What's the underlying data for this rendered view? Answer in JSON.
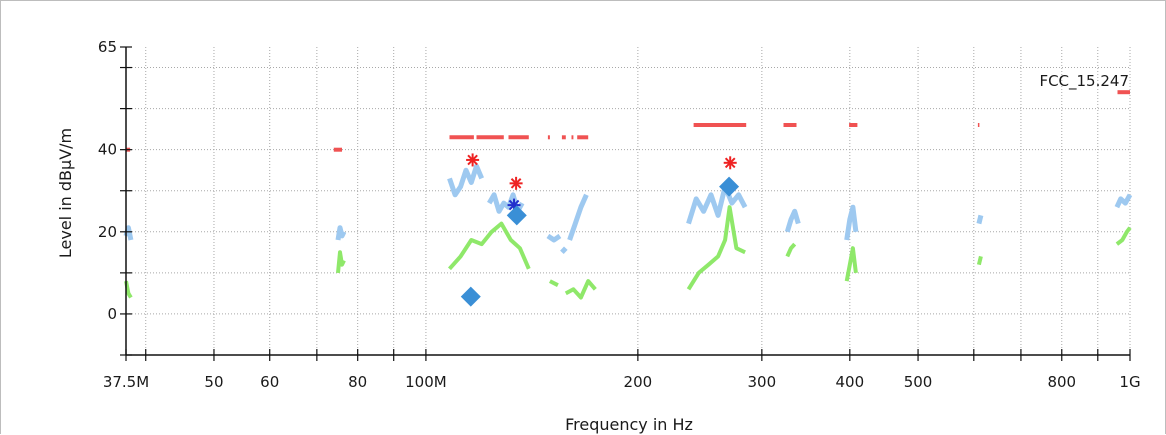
{
  "chart_data": {
    "type": "scatter",
    "xlabel": "Frequency in Hz",
    "ylabel": "Level in dBµV/m",
    "x_scale": "log",
    "xlim": [
      37.5,
      1000
    ],
    "ylim": [
      -10,
      65
    ],
    "grid": true,
    "x_ticks": [
      {
        "value": 37.5,
        "label": "37.5M"
      },
      {
        "value": 50,
        "label": "50"
      },
      {
        "value": 60,
        "label": "60"
      },
      {
        "value": 80,
        "label": "80"
      },
      {
        "value": 100,
        "label": "100M"
      },
      {
        "value": 200,
        "label": "200"
      },
      {
        "value": 300,
        "label": "300"
      },
      {
        "value": 400,
        "label": "400"
      },
      {
        "value": 500,
        "label": "500"
      },
      {
        "value": 800,
        "label": "800"
      },
      {
        "value": 1000,
        "label": "1G"
      }
    ],
    "y_ticks": [
      {
        "value": 0,
        "label": "0"
      },
      {
        "value": 20,
        "label": "20"
      },
      {
        "value": 40,
        "label": "40"
      },
      {
        "value": 65,
        "label": "65"
      }
    ],
    "limit_label": "FCC_15.247",
    "colors": {
      "limit": "#f05252",
      "peak": "#9ec9f0",
      "average": "#8fe86a",
      "marker_star": "#ee2222",
      "marker_star_blue": "#2230cc",
      "marker_diamond": "#3a8fd6",
      "grid": "#a8a8a8",
      "axis": "#111111"
    },
    "series": [
      {
        "kind": "limit",
        "segments": [
          [
            [
              37.5,
              40
            ],
            [
              38.0,
              40
            ]
          ],
          [
            [
              74,
              40
            ],
            [
              76,
              40
            ]
          ],
          [
            [
              108,
              43
            ],
            [
              117,
              43
            ]
          ],
          [
            [
              118,
              43
            ],
            [
              129,
              43
            ]
          ],
          [
            [
              131,
              43
            ],
            [
              140,
              43
            ]
          ],
          [
            [
              149,
              43
            ],
            [
              150,
              43
            ]
          ],
          [
            [
              156,
              43
            ],
            [
              158,
              43
            ]
          ],
          [
            [
              161,
              43
            ],
            [
              162,
              43
            ]
          ],
          [
            [
              164,
              43
            ],
            [
              170,
              43
            ]
          ],
          [
            [
              240,
              46
            ],
            [
              285,
              46
            ]
          ],
          [
            [
              322,
              46
            ],
            [
              336,
              46
            ]
          ],
          [
            [
              399,
              46
            ],
            [
              410,
              46
            ]
          ],
          [
            [
              608,
              46
            ],
            [
              611,
              46
            ]
          ],
          [
            [
              960,
              54
            ],
            [
              1000,
              54
            ]
          ]
        ]
      },
      {
        "kind": "peak",
        "segments": [
          [
            [
              37.5,
              19
            ],
            [
              37.8,
              21
            ],
            [
              38.1,
              18
            ]
          ],
          [
            [
              75,
              18
            ],
            [
              75.5,
              21
            ],
            [
              76,
              19
            ],
            [
              76.5,
              20
            ]
          ],
          [
            [
              108,
              33
            ],
            [
              110,
              29
            ],
            [
              112,
              31
            ],
            [
              114,
              35
            ],
            [
              116,
              32
            ],
            [
              118,
              36
            ],
            [
              120,
              33
            ]
          ],
          [
            [
              123,
              27
            ],
            [
              125,
              29
            ],
            [
              127,
              25
            ],
            [
              129,
              27
            ],
            [
              131,
              26
            ],
            [
              133,
              29
            ],
            [
              135,
              25
            ],
            [
              137,
              27
            ]
          ],
          [
            [
              149,
              19
            ],
            [
              152,
              18
            ],
            [
              155,
              19
            ]
          ],
          [
            [
              156,
              15
            ],
            [
              158,
              16
            ]
          ],
          [
            [
              160,
              18
            ],
            [
              163,
              22
            ],
            [
              166,
              26
            ],
            [
              169,
              29
            ]
          ],
          [
            [
              236,
              22
            ],
            [
              242,
              28
            ],
            [
              248,
              25
            ],
            [
              254,
              29
            ],
            [
              260,
              24
            ],
            [
              266,
              31
            ],
            [
              272,
              27
            ],
            [
              278,
              29
            ],
            [
              284,
              26
            ]
          ],
          [
            [
              326,
              20
            ],
            [
              330,
              23
            ],
            [
              334,
              25
            ],
            [
              338,
              22
            ]
          ],
          [
            [
              396,
              18
            ],
            [
              400,
              23
            ],
            [
              404,
              26
            ],
            [
              408,
              20
            ]
          ],
          [
            [
              610,
              22
            ],
            [
              614,
              24
            ]
          ],
          [
            [
              958,
              26
            ],
            [
              970,
              28
            ],
            [
              985,
              27
            ],
            [
              1000,
              29
            ]
          ]
        ]
      },
      {
        "kind": "average",
        "segments": [
          [
            [
              37.5,
              8
            ],
            [
              37.8,
              5
            ],
            [
              38.1,
              4
            ]
          ],
          [
            [
              75,
              10
            ],
            [
              75.5,
              15
            ],
            [
              76,
              12
            ],
            [
              76.5,
              13
            ]
          ],
          [
            [
              108,
              11
            ],
            [
              112,
              14
            ],
            [
              116,
              18
            ],
            [
              120,
              17
            ],
            [
              124,
              20
            ],
            [
              128,
              22
            ],
            [
              132,
              18
            ],
            [
              136,
              16
            ],
            [
              140,
              11
            ]
          ],
          [
            [
              150,
              8
            ],
            [
              154,
              7
            ]
          ],
          [
            [
              158,
              5
            ],
            [
              162,
              6
            ],
            [
              166,
              4
            ],
            [
              170,
              8
            ],
            [
              174,
              6
            ]
          ],
          [
            [
              236,
              6
            ],
            [
              244,
              10
            ],
            [
              252,
              12
            ],
            [
              260,
              14
            ],
            [
              266,
              18
            ],
            [
              270,
              26
            ],
            [
              276,
              16
            ],
            [
              284,
              15
            ]
          ],
          [
            [
              326,
              14
            ],
            [
              330,
              16
            ],
            [
              334,
              17
            ]
          ],
          [
            [
              396,
              8
            ],
            [
              400,
              12
            ],
            [
              404,
              16
            ],
            [
              408,
              10
            ]
          ],
          [
            [
              610,
              12
            ],
            [
              614,
              14
            ]
          ],
          [
            [
              958,
              17
            ],
            [
              975,
              18
            ],
            [
              990,
              20
            ],
            [
              1000,
              21
            ]
          ]
        ]
      }
    ],
    "markers": [
      {
        "shape": "star",
        "color": "red",
        "x": 116.5,
        "y": 37.5
      },
      {
        "shape": "star",
        "color": "red",
        "x": 134.3,
        "y": 31.8
      },
      {
        "shape": "star",
        "color": "blue",
        "x": 133.4,
        "y": 26.5
      },
      {
        "shape": "star",
        "color": "red",
        "x": 270.5,
        "y": 36.8
      },
      {
        "shape": "diamond",
        "color": "blue",
        "x": 115.8,
        "y": 4.2
      },
      {
        "shape": "diamond",
        "color": "blue",
        "x": 134.6,
        "y": 24.0
      },
      {
        "shape": "diamond",
        "color": "blue",
        "x": 269.5,
        "y": 31.0
      }
    ]
  }
}
